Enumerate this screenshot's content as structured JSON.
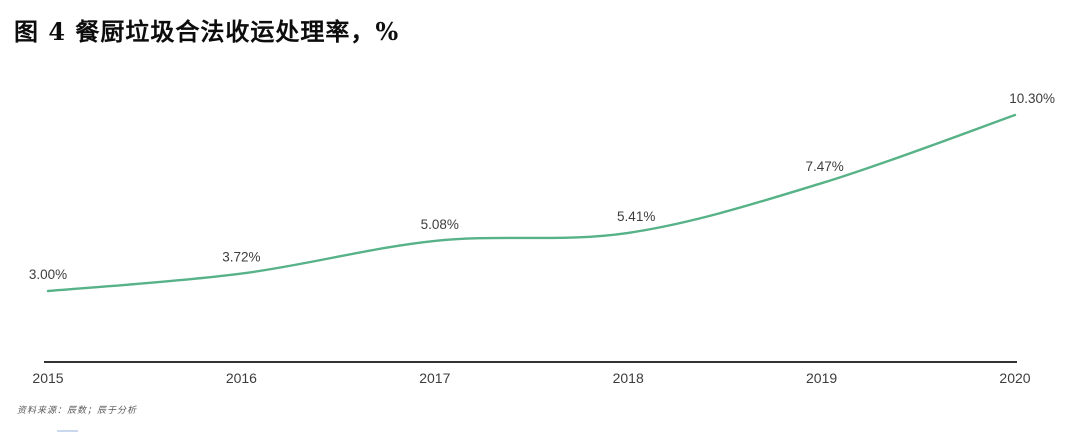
{
  "figure": {
    "title": "图 4 餐厨垃圾合法收运处理率，%"
  },
  "chart_data": {
    "type": "line",
    "title": "餐厨垃圾合法收运处理率",
    "unit": "%",
    "categories": [
      "2015",
      "2016",
      "2017",
      "2018",
      "2019",
      "2020"
    ],
    "series": [
      {
        "name": "餐厨垃圾合法收运处理率",
        "values": [
          3.0,
          3.72,
          5.08,
          5.41,
          7.47,
          10.3
        ]
      }
    ],
    "value_labels": [
      "3.00%",
      "3.72%",
      "5.08%",
      "5.41%",
      "7.47%",
      "10.30%"
    ],
    "ylim": [
      3.0,
      10.3
    ],
    "grid": false,
    "legend": "none",
    "line_color": "#57b287",
    "axis_color": "#333333",
    "label_color": "#3d3d3d"
  },
  "footer": {
    "source_text": "资料来源：辰数；辰于分析"
  }
}
